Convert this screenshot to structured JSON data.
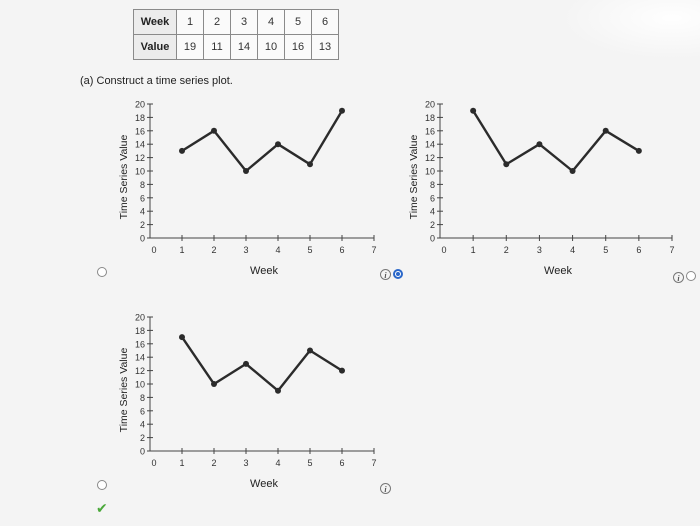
{
  "table": {
    "week_label": "Week",
    "value_label": "Value",
    "weeks": [
      "1",
      "2",
      "3",
      "4",
      "5",
      "6"
    ],
    "values": [
      "19",
      "11",
      "14",
      "10",
      "16",
      "13"
    ]
  },
  "question": {
    "label": "(a) Construct a time series plot."
  },
  "chart_data": [
    {
      "type": "line",
      "name": "option-a",
      "x": [
        1,
        2,
        3,
        4,
        5,
        6
      ],
      "y": [
        13,
        16,
        10,
        14,
        11,
        19
      ],
      "xlabel": "Week",
      "ylabel": "Time Series Value",
      "xlim": [
        0,
        7
      ],
      "ylim": [
        0,
        20
      ],
      "xticks": [
        0,
        1,
        2,
        3,
        4,
        5,
        6,
        7
      ],
      "yticks": [
        0,
        2,
        4,
        6,
        8,
        10,
        12,
        14,
        16,
        18,
        20
      ]
    },
    {
      "type": "line",
      "name": "option-b",
      "x": [
        1,
        2,
        3,
        4,
        5,
        6
      ],
      "y": [
        19,
        11,
        14,
        10,
        16,
        13
      ],
      "xlabel": "Week",
      "ylabel": "Time Series Value",
      "xlim": [
        0,
        7
      ],
      "ylim": [
        0,
        20
      ],
      "xticks": [
        0,
        1,
        2,
        3,
        4,
        5,
        6,
        7
      ],
      "yticks": [
        0,
        2,
        4,
        6,
        8,
        10,
        12,
        14,
        16,
        18,
        20
      ]
    },
    {
      "type": "line",
      "name": "option-c",
      "x": [
        1,
        2,
        3,
        4,
        5,
        6
      ],
      "y": [
        17,
        10,
        13,
        9,
        15,
        12
      ],
      "xlabel": "Week",
      "ylabel": "Time Series Value",
      "xlim": [
        0,
        7
      ],
      "ylim": [
        0,
        20
      ],
      "xticks": [
        0,
        1,
        2,
        3,
        4,
        5,
        6,
        7
      ],
      "yticks": [
        0,
        2,
        4,
        6,
        8,
        10,
        12,
        14,
        16,
        18,
        20
      ]
    }
  ],
  "options": {
    "selected": "option-b"
  },
  "colors": {
    "line": "#2b2b2b",
    "selected_radio": "#2a67c9",
    "check": "#4aa83a"
  }
}
